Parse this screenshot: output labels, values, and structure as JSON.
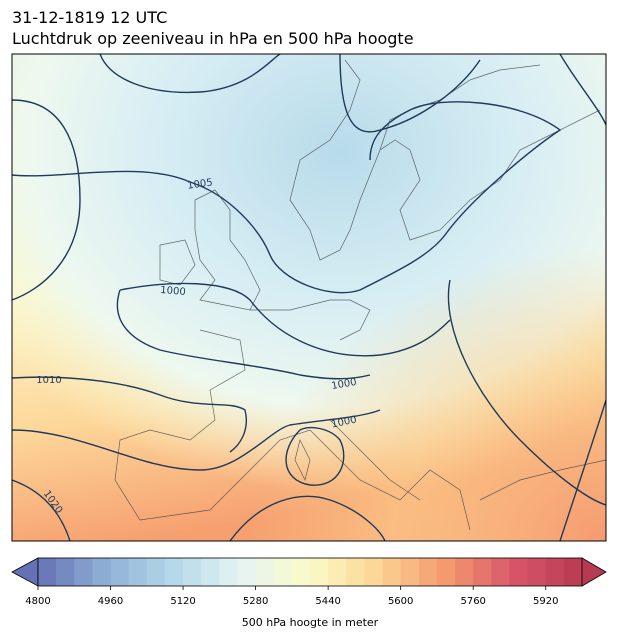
{
  "header": {
    "date": "31-12-1819 12 UTC",
    "title": "Luchtdruk op zeeniveau in hPa en 500 hPa hoogte"
  },
  "map": {
    "isobar_labels": [
      "1005",
      "1000",
      "1010",
      "1020",
      "1000",
      "1000"
    ]
  },
  "colorbar": {
    "label": "500 hPa hoogte in meter",
    "lim": [
      4800,
      6000
    ],
    "step": 40,
    "ticks": [
      4800,
      4960,
      5120,
      5280,
      5440,
      5600,
      5760,
      5920
    ],
    "colors": [
      "#6571b5",
      "#8fb0d6",
      "#b5d9ea",
      "#e6f4f3",
      "#fbfbc8",
      "#fdd494",
      "#f49a6e",
      "#d9566a",
      "#b83a52"
    ]
  }
}
